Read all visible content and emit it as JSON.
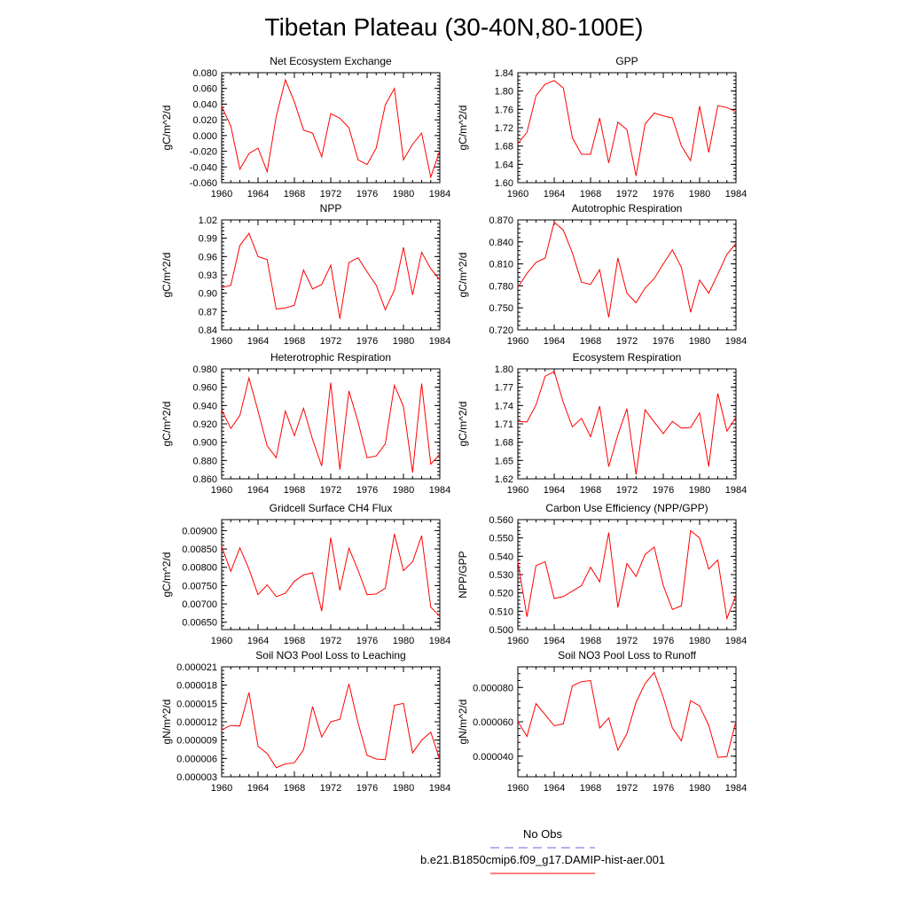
{
  "page": {
    "title": "Tibetan Plateau (30-40N,80-100E)"
  },
  "legend": {
    "items": [
      {
        "label": "No Obs",
        "color": "#6666dd",
        "dash": "dashed"
      },
      {
        "label": "b.e21.B1850cmip6.f09_g17.DAMIP-hist-aer.001",
        "color": "#ff0000",
        "dash": "solid"
      }
    ]
  },
  "chart_data": [
    {
      "type": "line",
      "title": "Net Ecosystem Exchange",
      "ylabel": "gC/m^2/d",
      "xlim": [
        1960,
        1984
      ],
      "ylim": [
        -0.06,
        0.08
      ],
      "xticks": [
        1960,
        1964,
        1968,
        1972,
        1976,
        1980,
        1984
      ],
      "xtick_labels": [
        "1960",
        "1964",
        "1968",
        "1972",
        "1976",
        "1980",
        "1984"
      ],
      "yticks": [
        -0.06,
        -0.04,
        -0.02,
        0.0,
        0.02,
        0.04,
        0.06,
        0.08
      ],
      "ytick_labels": [
        "-0.060",
        "-0.040",
        "-0.020",
        "0.000",
        "0.020",
        "0.040",
        "0.060",
        "0.080"
      ],
      "color": "#ff0000",
      "x": [
        1960,
        1961,
        1962,
        1963,
        1964,
        1965,
        1966,
        1967,
        1968,
        1969,
        1970,
        1971,
        1972,
        1973,
        1974,
        1975,
        1976,
        1977,
        1978,
        1979,
        1980,
        1981,
        1982,
        1983,
        1984
      ],
      "values": [
        0.037,
        0.012,
        -0.043,
        -0.023,
        -0.016,
        -0.046,
        0.024,
        0.071,
        0.043,
        0.007,
        0.003,
        -0.027,
        0.028,
        0.022,
        0.01,
        -0.031,
        -0.037,
        -0.016,
        0.039,
        0.06,
        -0.031,
        -0.011,
        0.003,
        -0.053,
        -0.019
      ]
    },
    {
      "type": "line",
      "title": "GPP",
      "ylabel": "gC/m^2/d",
      "xlim": [
        1960,
        1984
      ],
      "ylim": [
        1.6,
        1.84
      ],
      "xticks": [
        1960,
        1964,
        1968,
        1972,
        1976,
        1980,
        1984
      ],
      "xtick_labels": [
        "1960",
        "1964",
        "1968",
        "1972",
        "1976",
        "1980",
        "1984"
      ],
      "yticks": [
        1.6,
        1.64,
        1.68,
        1.72,
        1.76,
        1.8,
        1.84
      ],
      "ytick_labels": [
        "1.60",
        "1.64",
        "1.68",
        "1.72",
        "1.76",
        "1.80",
        "1.84"
      ],
      "color": "#ff0000",
      "x": [
        1960,
        1961,
        1962,
        1963,
        1964,
        1965,
        1966,
        1967,
        1968,
        1969,
        1970,
        1971,
        1972,
        1973,
        1974,
        1975,
        1976,
        1977,
        1978,
        1979,
        1980,
        1981,
        1982,
        1983,
        1984
      ],
      "values": [
        1.685,
        1.71,
        1.79,
        1.815,
        1.823,
        1.807,
        1.698,
        1.662,
        1.662,
        1.741,
        1.643,
        1.732,
        1.716,
        1.615,
        1.728,
        1.752,
        1.746,
        1.741,
        1.68,
        1.648,
        1.767,
        1.666,
        1.768,
        1.764,
        1.755
      ]
    },
    {
      "type": "line",
      "title": "NPP",
      "ylabel": "gC/m^2/d",
      "xlim": [
        1960,
        1984
      ],
      "ylim": [
        0.84,
        1.02
      ],
      "xticks": [
        1960,
        1964,
        1968,
        1972,
        1976,
        1980,
        1984
      ],
      "xtick_labels": [
        "1960",
        "1964",
        "1968",
        "1972",
        "1976",
        "1980",
        "1984"
      ],
      "yticks": [
        0.84,
        0.87,
        0.9,
        0.93,
        0.96,
        0.99,
        1.02
      ],
      "ytick_labels": [
        "0.84",
        "0.87",
        "0.90",
        "0.93",
        "0.96",
        "0.99",
        "1.02"
      ],
      "color": "#ff0000",
      "x": [
        1960,
        1961,
        1962,
        1963,
        1964,
        1965,
        1966,
        1967,
        1968,
        1969,
        1970,
        1971,
        1972,
        1973,
        1974,
        1975,
        1976,
        1977,
        1978,
        1979,
        1980,
        1981,
        1982,
        1983,
        1984
      ],
      "values": [
        0.909,
        0.913,
        0.978,
        0.998,
        0.96,
        0.955,
        0.874,
        0.876,
        0.88,
        0.938,
        0.907,
        0.914,
        0.946,
        0.858,
        0.95,
        0.958,
        0.935,
        0.913,
        0.873,
        0.905,
        0.975,
        0.897,
        0.967,
        0.94,
        0.922
      ]
    },
    {
      "type": "line",
      "title": "Autotrophic Respiration",
      "ylabel": "gC/m^2/d",
      "xlim": [
        1960,
        1984
      ],
      "ylim": [
        0.72,
        0.87
      ],
      "xticks": [
        1960,
        1964,
        1968,
        1972,
        1976,
        1980,
        1984
      ],
      "xtick_labels": [
        "1960",
        "1964",
        "1968",
        "1972",
        "1976",
        "1980",
        "1984"
      ],
      "yticks": [
        0.72,
        0.75,
        0.78,
        0.81,
        0.84,
        0.87
      ],
      "ytick_labels": [
        "0.720",
        "0.750",
        "0.780",
        "0.810",
        "0.840",
        "0.870"
      ],
      "color": "#ff0000",
      "x": [
        1960,
        1961,
        1962,
        1963,
        1964,
        1965,
        1966,
        1967,
        1968,
        1969,
        1970,
        1971,
        1972,
        1973,
        1974,
        1975,
        1976,
        1977,
        1978,
        1979,
        1980,
        1981,
        1982,
        1983,
        1984
      ],
      "values": [
        0.778,
        0.797,
        0.812,
        0.818,
        0.867,
        0.856,
        0.825,
        0.785,
        0.782,
        0.802,
        0.737,
        0.818,
        0.77,
        0.757,
        0.777,
        0.79,
        0.81,
        0.829,
        0.805,
        0.744,
        0.788,
        0.77,
        0.796,
        0.823,
        0.838
      ]
    },
    {
      "type": "line",
      "title": "Heterotrophic Respiration",
      "ylabel": "gC/m^2/d",
      "xlim": [
        1960,
        1984
      ],
      "ylim": [
        0.86,
        0.98
      ],
      "xticks": [
        1960,
        1964,
        1968,
        1972,
        1976,
        1980,
        1984
      ],
      "xtick_labels": [
        "1960",
        "1964",
        "1968",
        "1972",
        "1976",
        "1980",
        "1984"
      ],
      "yticks": [
        0.86,
        0.88,
        0.9,
        0.92,
        0.94,
        0.96,
        0.98
      ],
      "ytick_labels": [
        "0.860",
        "0.880",
        "0.900",
        "0.920",
        "0.940",
        "0.960",
        "0.980"
      ],
      "color": "#ff0000",
      "x": [
        1960,
        1961,
        1962,
        1963,
        1964,
        1965,
        1966,
        1967,
        1968,
        1969,
        1970,
        1971,
        1972,
        1973,
        1974,
        1975,
        1976,
        1977,
        1978,
        1979,
        1980,
        1981,
        1982,
        1983,
        1984
      ],
      "values": [
        0.935,
        0.915,
        0.929,
        0.97,
        0.934,
        0.896,
        0.883,
        0.934,
        0.907,
        0.937,
        0.903,
        0.874,
        0.965,
        0.87,
        0.956,
        0.922,
        0.883,
        0.885,
        0.898,
        0.962,
        0.939,
        0.867,
        0.964,
        0.876,
        0.887
      ]
    },
    {
      "type": "line",
      "title": "Ecosystem Respiration",
      "ylabel": "gC/m^2/d",
      "xlim": [
        1960,
        1984
      ],
      "ylim": [
        1.62,
        1.8
      ],
      "xticks": [
        1960,
        1964,
        1968,
        1972,
        1976,
        1980,
        1984
      ],
      "xtick_labels": [
        "1960",
        "1964",
        "1968",
        "1972",
        "1976",
        "1980",
        "1984"
      ],
      "yticks": [
        1.62,
        1.65,
        1.68,
        1.71,
        1.74,
        1.77,
        1.8
      ],
      "ytick_labels": [
        "1.62",
        "1.65",
        "1.68",
        "1.71",
        "1.74",
        "1.77",
        "1.80"
      ],
      "color": "#ff0000",
      "x": [
        1960,
        1961,
        1962,
        1963,
        1964,
        1965,
        1966,
        1967,
        1968,
        1969,
        1970,
        1971,
        1972,
        1973,
        1974,
        1975,
        1976,
        1977,
        1978,
        1979,
        1980,
        1981,
        1982,
        1983,
        1984
      ],
      "values": [
        1.714,
        1.713,
        1.741,
        1.788,
        1.796,
        1.745,
        1.705,
        1.719,
        1.689,
        1.739,
        1.64,
        1.692,
        1.735,
        1.627,
        1.733,
        1.713,
        1.694,
        1.714,
        1.703,
        1.704,
        1.728,
        1.64,
        1.76,
        1.698,
        1.721
      ]
    },
    {
      "type": "line",
      "title": "Gridcell Surface CH4 Flux",
      "ylabel": "gC/m^2/d",
      "xlim": [
        1960,
        1984
      ],
      "ylim": [
        0.0063,
        0.0093
      ],
      "xticks": [
        1960,
        1964,
        1968,
        1972,
        1976,
        1980,
        1984
      ],
      "xtick_labels": [
        "1960",
        "1964",
        "1968",
        "1972",
        "1976",
        "1980",
        "1984"
      ],
      "yticks": [
        0.0065,
        0.007,
        0.0075,
        0.008,
        0.0085,
        0.009
      ],
      "ytick_labels": [
        "0.00650",
        "0.00700",
        "0.00750",
        "0.00800",
        "0.00850",
        "0.00900"
      ],
      "color": "#ff0000",
      "x": [
        1960,
        1961,
        1962,
        1963,
        1964,
        1965,
        1966,
        1967,
        1968,
        1969,
        1970,
        1971,
        1972,
        1973,
        1974,
        1975,
        1976,
        1977,
        1978,
        1979,
        1980,
        1981,
        1982,
        1983,
        1984
      ],
      "values": [
        0.00856,
        0.00789,
        0.00853,
        0.00795,
        0.00725,
        0.00752,
        0.0072,
        0.00729,
        0.00762,
        0.00779,
        0.00785,
        0.0068,
        0.00881,
        0.00737,
        0.00852,
        0.00792,
        0.00725,
        0.00727,
        0.00743,
        0.00891,
        0.00791,
        0.00815,
        0.00886,
        0.00691,
        0.00667
      ]
    },
    {
      "type": "line",
      "title": "Carbon Use Efficiency (NPP/GPP)",
      "ylabel": "NPP/GPP",
      "xlim": [
        1960,
        1984
      ],
      "ylim": [
        0.5,
        0.56
      ],
      "xticks": [
        1960,
        1964,
        1968,
        1972,
        1976,
        1980,
        1984
      ],
      "xtick_labels": [
        "1960",
        "1964",
        "1968",
        "1972",
        "1976",
        "1980",
        "1984"
      ],
      "yticks": [
        0.5,
        0.51,
        0.52,
        0.53,
        0.54,
        0.55,
        0.56
      ],
      "ytick_labels": [
        "0.500",
        "0.510",
        "0.520",
        "0.530",
        "0.540",
        "0.550",
        "0.560"
      ],
      "color": "#ff0000",
      "x": [
        1960,
        1961,
        1962,
        1963,
        1964,
        1965,
        1966,
        1967,
        1968,
        1969,
        1970,
        1971,
        1972,
        1973,
        1974,
        1975,
        1976,
        1977,
        1978,
        1979,
        1980,
        1981,
        1982,
        1983,
        1984
      ],
      "values": [
        0.537,
        0.507,
        0.535,
        0.537,
        0.517,
        0.518,
        0.521,
        0.524,
        0.534,
        0.526,
        0.553,
        0.512,
        0.536,
        0.529,
        0.541,
        0.545,
        0.524,
        0.511,
        0.513,
        0.554,
        0.55,
        0.533,
        0.538,
        0.506,
        0.519
      ]
    },
    {
      "type": "line",
      "title": "Soil NO3 Pool Loss to Leaching",
      "ylabel": "gN/m^2/d",
      "xlim": [
        1960,
        1984
      ],
      "ylim": [
        3e-06,
        2.1e-05
      ],
      "xticks": [
        1960,
        1964,
        1968,
        1972,
        1976,
        1980,
        1984
      ],
      "xtick_labels": [
        "1960",
        "1964",
        "1968",
        "1972",
        "1976",
        "1980",
        "1984"
      ],
      "yticks": [
        3e-06,
        6e-06,
        9e-06,
        1.2e-05,
        1.5e-05,
        1.8e-05,
        2.1e-05
      ],
      "ytick_labels": [
        "0.000003",
        "0.000006",
        "0.000009",
        "0.000012",
        "0.000015",
        "0.000018",
        "0.000021"
      ],
      "color": "#ff0000",
      "x": [
        1960,
        1961,
        1962,
        1963,
        1964,
        1965,
        1966,
        1967,
        1968,
        1969,
        1970,
        1971,
        1972,
        1973,
        1974,
        1975,
        1976,
        1977,
        1978,
        1979,
        1980,
        1981,
        1982,
        1983,
        1984
      ],
      "values": [
        1.07e-05,
        1.14e-05,
        1.13e-05,
        1.68e-05,
        8e-06,
        6.8e-06,
        4.5e-06,
        5.1e-06,
        5.3e-06,
        7.4e-06,
        1.45e-05,
        9.5e-06,
        1.2e-05,
        1.24e-05,
        1.82e-05,
        1.18e-05,
        6.5e-06,
        5.9e-06,
        5.8e-06,
        1.47e-05,
        1.5e-05,
        6.9e-06,
        9e-06,
        1.03e-05,
        5.8e-06
      ]
    },
    {
      "type": "line",
      "title": "Soil NO3 Pool Loss to Runoff",
      "ylabel": "gN/m^2/d",
      "xlim": [
        1960,
        1984
      ],
      "ylim": [
        2.8e-05,
        9.2e-05
      ],
      "xticks": [
        1960,
        1964,
        1968,
        1972,
        1976,
        1980,
        1984
      ],
      "xtick_labels": [
        "1960",
        "1964",
        "1968",
        "1972",
        "1976",
        "1980",
        "1984"
      ],
      "yticks": [
        4e-05,
        6e-05,
        8e-05
      ],
      "ytick_labels": [
        "0.000040",
        "0.000060",
        "0.000080"
      ],
      "color": "#ff0000",
      "x": [
        1960,
        1961,
        1962,
        1963,
        1964,
        1965,
        1966,
        1967,
        1968,
        1969,
        1970,
        1971,
        1972,
        1973,
        1974,
        1975,
        1976,
        1977,
        1978,
        1979,
        1980,
        1981,
        1982,
        1983,
        1984
      ],
      "values": [
        6.01e-05,
        5.15e-05,
        7.06e-05,
        6.41e-05,
        5.77e-05,
        5.88e-05,
        8.09e-05,
        8.34e-05,
        8.4e-05,
        5.64e-05,
        6.22e-05,
        4.35e-05,
        5.31e-05,
        7.13e-05,
        8.23e-05,
        8.87e-05,
        7.42e-05,
        5.64e-05,
        4.88e-05,
        7.23e-05,
        6.92e-05,
        5.79e-05,
        3.93e-05,
        3.97e-05,
        6.04e-05
      ]
    }
  ]
}
